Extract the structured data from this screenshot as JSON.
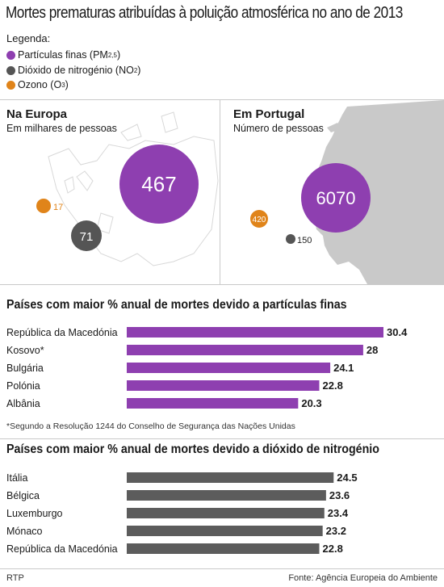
{
  "title": "Mortes prematuras atribuídas à poluição atmosférica no ano de 2013",
  "legend": {
    "heading": "Legenda:",
    "items": [
      {
        "label": "Partículas finas (PM",
        "sub": "2,5",
        "tail": ")",
        "color": "#8e3fb0"
      },
      {
        "label": "Dióxido de nitrogénio (NO",
        "sub": "2",
        "tail": ")",
        "color": "#555555"
      },
      {
        "label": "Ozono (O",
        "sub": "3",
        "tail": ")",
        "color": "#e0841a"
      }
    ]
  },
  "europe": {
    "heading": "Na Europa",
    "subtitle": "Em milhares de pessoas",
    "pm": "467",
    "no2": "71",
    "o3": "17"
  },
  "portugal": {
    "heading": "Em Portugal",
    "subtitle": "Número de pessoas",
    "pm": "6070",
    "no2": "150",
    "o3": "420"
  },
  "chart_data": [
    {
      "type": "bar",
      "orientation": "horizontal",
      "title": "Países com maior % anual de mortes devido a partículas finas",
      "categories": [
        "República da Macedónia",
        "Kosovo*",
        "Bulgária",
        "Polónia",
        "Albânia"
      ],
      "values": [
        30.4,
        28,
        24.1,
        22.8,
        20.3
      ],
      "value_labels": [
        "30.4",
        "28",
        "24.1",
        "22.8",
        "20.3"
      ],
      "color": "#8e3fb0"
    },
    {
      "type": "bar",
      "orientation": "horizontal",
      "title": "Países com maior % anual de mortes devido a dióxido de nitrogénio",
      "categories": [
        "Itália",
        "Bélgica",
        "Luxemburgo",
        "Mónaco",
        "República da Macedónia"
      ],
      "values": [
        24.5,
        23.6,
        23.4,
        23.2,
        22.8
      ],
      "value_labels": [
        "24.5",
        "23.6",
        "23.4",
        "23.2",
        "22.8"
      ],
      "color": "#5c5c5c"
    }
  ],
  "note": "*Segundo a Resolução 1244 do Conselho de Segurança das Nações Unidas",
  "footer": {
    "left": "RTP",
    "right": "Fonte: Agência Europeia do Ambiente"
  }
}
